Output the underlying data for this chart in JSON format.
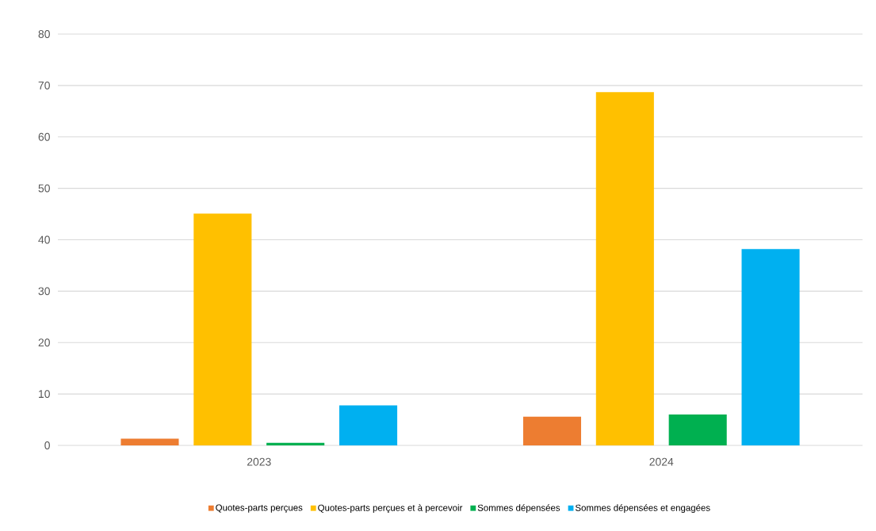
{
  "chart_data": {
    "type": "bar",
    "categories": [
      "2023",
      "2024"
    ],
    "series": [
      {
        "name": "Quotes-parts perçues",
        "color": "#ed7d31",
        "values": [
          1.3,
          5.6
        ]
      },
      {
        "name": "Quotes-parts perçues et à percevoir",
        "color": "#ffc000",
        "values": [
          45.1,
          68.7
        ]
      },
      {
        "name": "Sommes dépensées",
        "color": "#00b050",
        "values": [
          0.5,
          6.0
        ]
      },
      {
        "name": "Sommes dépensées et engagées",
        "color": "#00b0f0",
        "values": [
          7.8,
          38.2
        ]
      }
    ],
    "ylim": [
      0,
      80
    ],
    "yticks": [
      0,
      10,
      20,
      30,
      40,
      50,
      60,
      70,
      80
    ],
    "grid": "y",
    "legend": "bottom"
  }
}
